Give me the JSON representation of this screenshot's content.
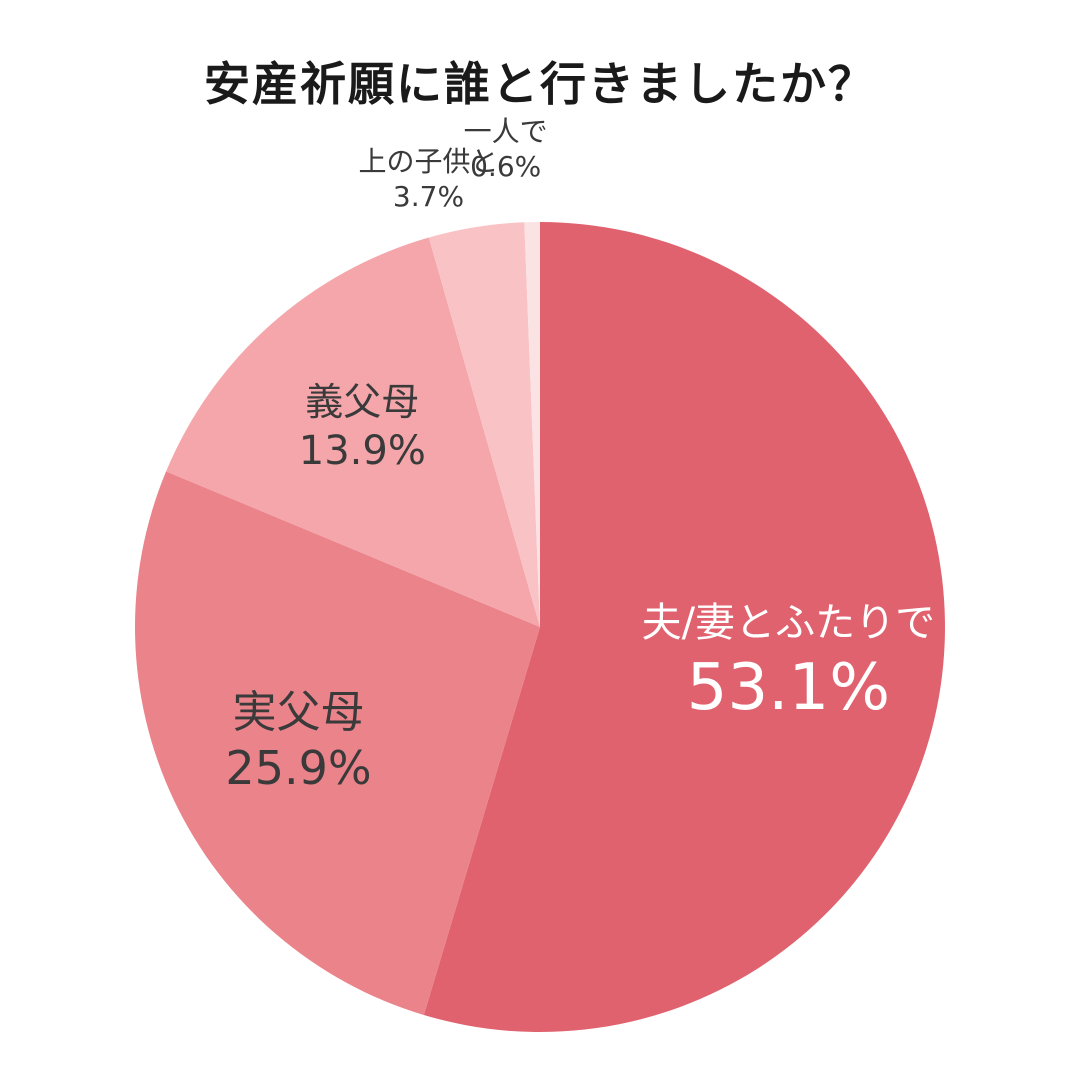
{
  "chart_data": {
    "type": "pie",
    "title": "安産祈願に誰と行きましたか？",
    "slices": [
      {
        "label": "夫/妻とふたりで",
        "value": 53.1,
        "value_label": "53.1%",
        "color": "#e0626e",
        "text_color": "#ffffff"
      },
      {
        "label": "実父母",
        "value": 25.9,
        "value_label": "25.9%",
        "color": "#eb838b",
        "text_color": "#3a3a3a"
      },
      {
        "label": "義父母",
        "value": 13.9,
        "value_label": "13.9%",
        "color": "#f4a6ab",
        "text_color": "#3a3a3a"
      },
      {
        "label": "上の子供と",
        "value": 3.7,
        "value_label": "3.7%",
        "color": "#f9c3c6",
        "text_color": "#3a3a3a"
      },
      {
        "label": "一人で",
        "value": 0.6,
        "value_label": "0.6%",
        "color": "#fbe3e4",
        "text_color": "#3a3a3a"
      }
    ],
    "start": "top",
    "direction": "clockwise",
    "legend": "none"
  }
}
